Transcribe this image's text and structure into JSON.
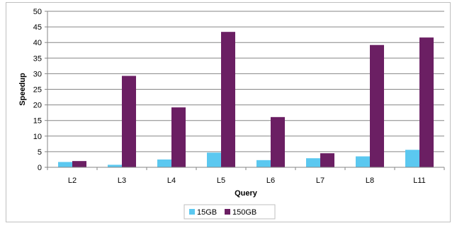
{
  "chart_data": {
    "type": "bar",
    "title": "",
    "xlabel": "Query",
    "ylabel": "Speedup",
    "categories": [
      "L2",
      "L3",
      "L4",
      "L5",
      "L6",
      "L7",
      "L8",
      "L11"
    ],
    "series": [
      {
        "name": "15GB",
        "color": "#5bc8f0",
        "values": [
          1.7,
          0.8,
          2.5,
          4.7,
          2.3,
          2.9,
          3.5,
          5.6
        ]
      },
      {
        "name": "150GB",
        "color": "#6b1f63",
        "values": [
          2.0,
          29.3,
          19.2,
          43.4,
          16.1,
          4.5,
          39.2,
          41.6
        ]
      }
    ],
    "ylim": [
      0,
      50
    ],
    "yticks": [
      0,
      5,
      10,
      15,
      20,
      25,
      30,
      35,
      40,
      45,
      50
    ],
    "grid": true,
    "legend_position": "bottom"
  }
}
